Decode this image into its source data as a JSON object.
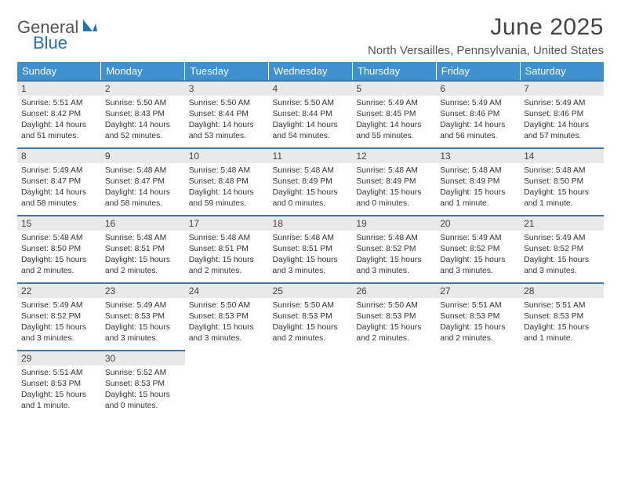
{
  "logo": {
    "text1": "General",
    "text2": "Blue"
  },
  "title": "June 2025",
  "location": "North Versailles, Pennsylvania, United States",
  "colors": {
    "header_bg": "#3e90ce",
    "header_fg": "#ffffff",
    "daynum_bg": "#e9e9e9",
    "daynum_border": "#3e76a8",
    "logo_accent": "#2271b7",
    "text": "#333333",
    "page_bg": "#ffffff"
  },
  "day_headers": [
    "Sunday",
    "Monday",
    "Tuesday",
    "Wednesday",
    "Thursday",
    "Friday",
    "Saturday"
  ],
  "weeks": [
    [
      {
        "n": "1",
        "sr": "5:51 AM",
        "ss": "8:42 PM",
        "dl": "14 hours and 51 minutes."
      },
      {
        "n": "2",
        "sr": "5:50 AM",
        "ss": "8:43 PM",
        "dl": "14 hours and 52 minutes."
      },
      {
        "n": "3",
        "sr": "5:50 AM",
        "ss": "8:44 PM",
        "dl": "14 hours and 53 minutes."
      },
      {
        "n": "4",
        "sr": "5:50 AM",
        "ss": "8:44 PM",
        "dl": "14 hours and 54 minutes."
      },
      {
        "n": "5",
        "sr": "5:49 AM",
        "ss": "8:45 PM",
        "dl": "14 hours and 55 minutes."
      },
      {
        "n": "6",
        "sr": "5:49 AM",
        "ss": "8:46 PM",
        "dl": "14 hours and 56 minutes."
      },
      {
        "n": "7",
        "sr": "5:49 AM",
        "ss": "8:46 PM",
        "dl": "14 hours and 57 minutes."
      }
    ],
    [
      {
        "n": "8",
        "sr": "5:49 AM",
        "ss": "8:47 PM",
        "dl": "14 hours and 58 minutes."
      },
      {
        "n": "9",
        "sr": "5:48 AM",
        "ss": "8:47 PM",
        "dl": "14 hours and 58 minutes."
      },
      {
        "n": "10",
        "sr": "5:48 AM",
        "ss": "8:48 PM",
        "dl": "14 hours and 59 minutes."
      },
      {
        "n": "11",
        "sr": "5:48 AM",
        "ss": "8:49 PM",
        "dl": "15 hours and 0 minutes."
      },
      {
        "n": "12",
        "sr": "5:48 AM",
        "ss": "8:49 PM",
        "dl": "15 hours and 0 minutes."
      },
      {
        "n": "13",
        "sr": "5:48 AM",
        "ss": "8:49 PM",
        "dl": "15 hours and 1 minute."
      },
      {
        "n": "14",
        "sr": "5:48 AM",
        "ss": "8:50 PM",
        "dl": "15 hours and 1 minute."
      }
    ],
    [
      {
        "n": "15",
        "sr": "5:48 AM",
        "ss": "8:50 PM",
        "dl": "15 hours and 2 minutes."
      },
      {
        "n": "16",
        "sr": "5:48 AM",
        "ss": "8:51 PM",
        "dl": "15 hours and 2 minutes."
      },
      {
        "n": "17",
        "sr": "5:48 AM",
        "ss": "8:51 PM",
        "dl": "15 hours and 2 minutes."
      },
      {
        "n": "18",
        "sr": "5:48 AM",
        "ss": "8:51 PM",
        "dl": "15 hours and 3 minutes."
      },
      {
        "n": "19",
        "sr": "5:48 AM",
        "ss": "8:52 PM",
        "dl": "15 hours and 3 minutes."
      },
      {
        "n": "20",
        "sr": "5:49 AM",
        "ss": "8:52 PM",
        "dl": "15 hours and 3 minutes."
      },
      {
        "n": "21",
        "sr": "5:49 AM",
        "ss": "8:52 PM",
        "dl": "15 hours and 3 minutes."
      }
    ],
    [
      {
        "n": "22",
        "sr": "5:49 AM",
        "ss": "8:52 PM",
        "dl": "15 hours and 3 minutes."
      },
      {
        "n": "23",
        "sr": "5:49 AM",
        "ss": "8:53 PM",
        "dl": "15 hours and 3 minutes."
      },
      {
        "n": "24",
        "sr": "5:50 AM",
        "ss": "8:53 PM",
        "dl": "15 hours and 3 minutes."
      },
      {
        "n": "25",
        "sr": "5:50 AM",
        "ss": "8:53 PM",
        "dl": "15 hours and 2 minutes."
      },
      {
        "n": "26",
        "sr": "5:50 AM",
        "ss": "8:53 PM",
        "dl": "15 hours and 2 minutes."
      },
      {
        "n": "27",
        "sr": "5:51 AM",
        "ss": "8:53 PM",
        "dl": "15 hours and 2 minutes."
      },
      {
        "n": "28",
        "sr": "5:51 AM",
        "ss": "8:53 PM",
        "dl": "15 hours and 1 minute."
      }
    ],
    [
      {
        "n": "29",
        "sr": "5:51 AM",
        "ss": "8:53 PM",
        "dl": "15 hours and 1 minute."
      },
      {
        "n": "30",
        "sr": "5:52 AM",
        "ss": "8:53 PM",
        "dl": "15 hours and 0 minutes."
      },
      null,
      null,
      null,
      null,
      null
    ]
  ],
  "labels": {
    "sunrise": "Sunrise: ",
    "sunset": "Sunset: ",
    "daylight": "Daylight: "
  }
}
